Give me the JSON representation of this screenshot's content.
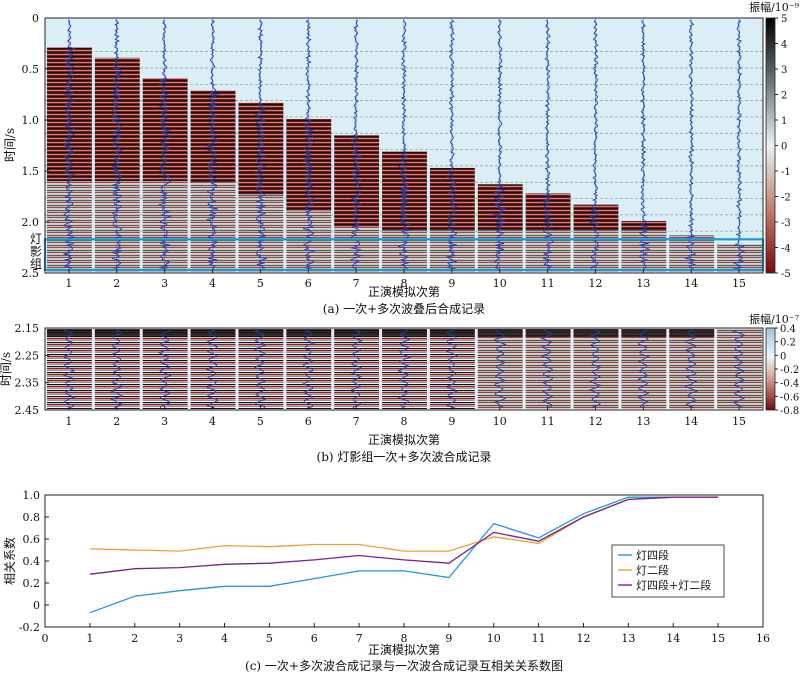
{
  "panels": {
    "a": {
      "caption": "(a) 一次+多次波叠后合成记录",
      "xlabel": "正演模拟次第",
      "ylabel": "时间/s",
      "x_ticks": [
        "1",
        "2",
        "3",
        "4",
        "5",
        "6",
        "7",
        "8",
        "9",
        "10",
        "11",
        "12",
        "13",
        "14",
        "15"
      ],
      "y_ticks": [
        "0",
        "0.5",
        "1.0",
        "1.5",
        "2.0",
        "2.5"
      ],
      "ylim": [
        0,
        2.5
      ],
      "colorbar_title": "振幅/10⁻⁹",
      "colorbar_ticks": [
        "5",
        "4",
        "3",
        "2",
        "1",
        "0",
        "-1",
        "-2",
        "-3",
        "-4",
        "-5"
      ],
      "colorbar_range": [
        -5,
        5
      ],
      "highlight_label": "灯影组",
      "highlight_range": [
        2.15,
        2.45
      ],
      "start_times": [
        0.29,
        0.39,
        0.59,
        0.71,
        0.83,
        0.99,
        1.15,
        1.31,
        1.47,
        1.63,
        1.72,
        1.83,
        1.99,
        2.13,
        2.21
      ]
    },
    "b": {
      "caption": "(b) 灯影组一次+多次波合成记录",
      "xlabel": "正演模拟次第",
      "ylabel": "时间/s",
      "x_ticks": [
        "1",
        "2",
        "3",
        "4",
        "5",
        "6",
        "7",
        "8",
        "9",
        "10",
        "11",
        "12",
        "13",
        "14",
        "15"
      ],
      "y_ticks": [
        "2.15",
        "2.25",
        "2.35",
        "2.45"
      ],
      "ylim": [
        2.15,
        2.45
      ],
      "colorbar_title": "振幅/10⁻⁷",
      "colorbar_ticks": [
        "0.4",
        "0.2",
        "0",
        "-0.2",
        "-0.4",
        "-0.6",
        "-0.8"
      ],
      "colorbar_range": [
        -0.8,
        0.4
      ]
    },
    "c": {
      "caption": "(c) 一次+多次波合成记录与一次波合成记录互相关关系数图",
      "xlabel": "正演模拟次第",
      "ylabel": "相关系数"
    }
  },
  "chart_data": {
    "type": "line",
    "x": [
      1,
      2,
      3,
      4,
      5,
      6,
      7,
      8,
      9,
      10,
      11,
      12,
      13,
      14,
      15
    ],
    "xlim": [
      0,
      16
    ],
    "ylim": [
      -0.2,
      1.0
    ],
    "x_ticks": [
      "0",
      "1",
      "2",
      "3",
      "4",
      "5",
      "6",
      "7",
      "8",
      "9",
      "10",
      "11",
      "12",
      "13",
      "14",
      "15",
      "16"
    ],
    "y_ticks": [
      "-0.2",
      "0",
      "0.2",
      "0.4",
      "0.6",
      "0.8",
      "1.0"
    ],
    "legend_position": "right",
    "series": [
      {
        "name": "灯四段",
        "color": "#1f9ad6",
        "values": [
          -0.07,
          0.08,
          0.13,
          0.17,
          0.17,
          0.24,
          0.31,
          0.31,
          0.25,
          0.74,
          0.61,
          0.83,
          0.98,
          0.98,
          0.98
        ]
      },
      {
        "name": "灯二段",
        "color": "#f0a030",
        "values": [
          0.51,
          0.5,
          0.49,
          0.54,
          0.53,
          0.55,
          0.55,
          0.49,
          0.49,
          0.62,
          0.56,
          0.8,
          0.96,
          0.98,
          0.98
        ]
      },
      {
        "name": "灯四段+灯二段",
        "color": "#7a1f8a",
        "values": [
          0.28,
          0.33,
          0.34,
          0.37,
          0.38,
          0.41,
          0.45,
          0.41,
          0.38,
          0.66,
          0.58,
          0.8,
          0.96,
          0.98,
          0.98
        ]
      }
    ]
  }
}
